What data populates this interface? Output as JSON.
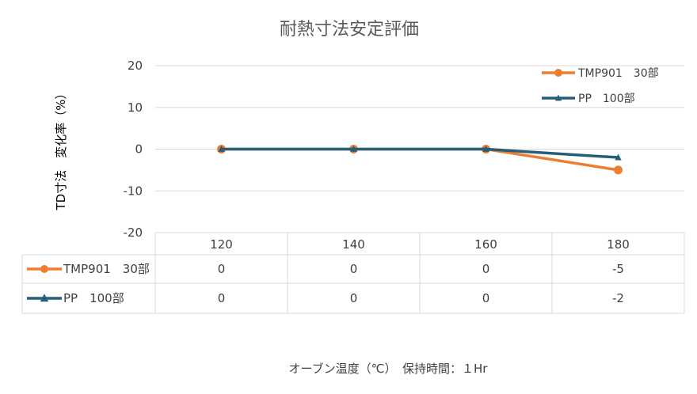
{
  "chart_data": {
    "type": "line",
    "title": "耐熱寸法安定評価",
    "ylabel": "TD寸法　変化率（%）",
    "xlabel": "オーブン温度（℃）　保持時間：１Hr",
    "categories": [
      "120",
      "140",
      "160",
      "180"
    ],
    "ylim": [
      -20,
      20
    ],
    "yticks": [
      "20",
      "10",
      "0",
      "-10",
      "-20"
    ],
    "grid": true,
    "legend_position": "top-right",
    "series": [
      {
        "name": "TMP901　30部",
        "values": [
          0,
          0,
          0,
          -5
        ],
        "labels": [
          "0",
          "0",
          "0",
          "-5"
        ],
        "color": "#ED7D31",
        "marker": "circle"
      },
      {
        "name": "PP　100部",
        "values": [
          0,
          0,
          0,
          -2
        ],
        "labels": [
          "0",
          "0",
          "0",
          "-2"
        ],
        "color": "#255E79",
        "marker": "triangle"
      }
    ]
  }
}
